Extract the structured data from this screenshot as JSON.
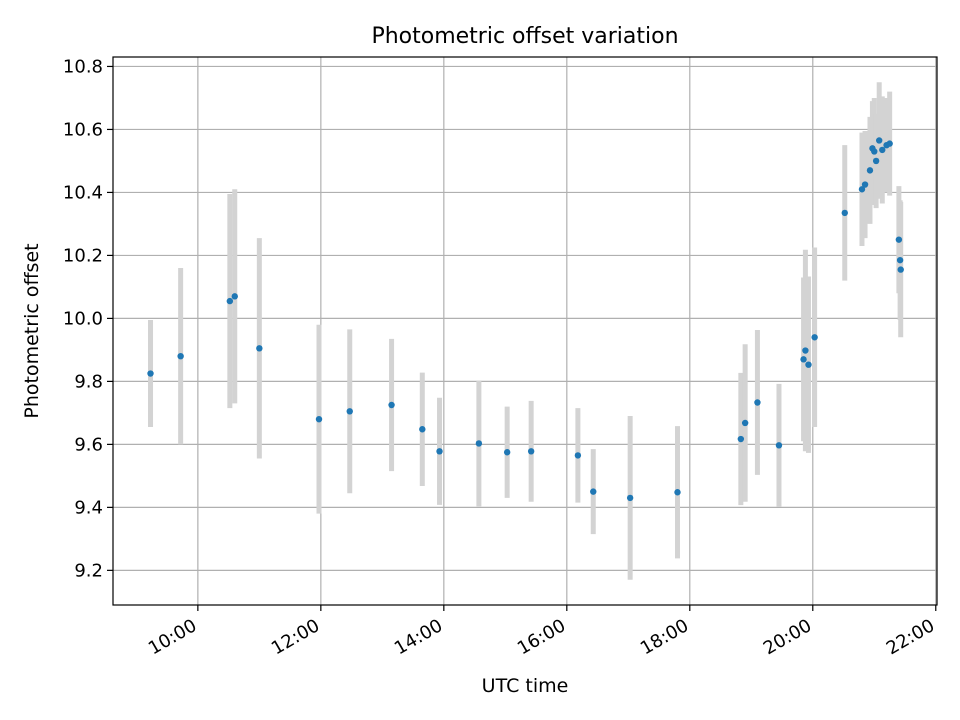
{
  "chart_data": {
    "type": "scatter",
    "title": "Photometric offset variation",
    "xlabel": "UTC time",
    "ylabel": "Photometric offset",
    "x_unit": "hours (UTC)",
    "xlim": [
      8.62,
      22.02
    ],
    "ylim": [
      9.09,
      10.83
    ],
    "grid": true,
    "xticks": [
      {
        "value": 10,
        "label": "10:00"
      },
      {
        "value": 12,
        "label": "12:00"
      },
      {
        "value": 14,
        "label": "14:00"
      },
      {
        "value": 16,
        "label": "16:00"
      },
      {
        "value": 18,
        "label": "18:00"
      },
      {
        "value": 20,
        "label": "20:00"
      },
      {
        "value": 22,
        "label": "22:00"
      }
    ],
    "yticks": [
      {
        "value": 9.2,
        "label": "9.2"
      },
      {
        "value": 9.4,
        "label": "9.4"
      },
      {
        "value": 9.6,
        "label": "9.6"
      },
      {
        "value": 9.8,
        "label": "9.8"
      },
      {
        "value": 10.0,
        "label": "10.0"
      },
      {
        "value": 10.2,
        "label": "10.2"
      },
      {
        "value": 10.4,
        "label": "10.4"
      },
      {
        "value": 10.6,
        "label": "10.6"
      },
      {
        "value": 10.8,
        "label": "10.8"
      }
    ],
    "colors": {
      "point": "#1f77b4",
      "errorbar": "#d3d3d3",
      "grid": "#b0b0b0",
      "axes": "#000000"
    },
    "points": [
      {
        "x": 9.23,
        "y": 9.825,
        "yerr": 0.17
      },
      {
        "x": 9.72,
        "y": 9.88,
        "yerr": 0.28
      },
      {
        "x": 10.52,
        "y": 10.055,
        "yerr": 0.34
      },
      {
        "x": 10.6,
        "y": 10.07,
        "yerr": 0.34
      },
      {
        "x": 11.0,
        "y": 9.905,
        "yerr": 0.35
      },
      {
        "x": 11.97,
        "y": 9.68,
        "yerr": 0.3
      },
      {
        "x": 12.47,
        "y": 9.705,
        "yerr": 0.26
      },
      {
        "x": 13.15,
        "y": 9.725,
        "yerr": 0.21
      },
      {
        "x": 13.65,
        "y": 9.648,
        "yerr": 0.18
      },
      {
        "x": 13.93,
        "y": 9.578,
        "yerr": 0.17
      },
      {
        "x": 14.57,
        "y": 9.603,
        "yerr": 0.2
      },
      {
        "x": 15.03,
        "y": 9.575,
        "yerr": 0.145
      },
      {
        "x": 15.42,
        "y": 9.578,
        "yerr": 0.16
      },
      {
        "x": 16.18,
        "y": 9.565,
        "yerr": 0.15
      },
      {
        "x": 16.43,
        "y": 9.45,
        "yerr": 0.135
      },
      {
        "x": 17.03,
        "y": 9.43,
        "yerr": 0.26
      },
      {
        "x": 17.8,
        "y": 9.448,
        "yerr": 0.21
      },
      {
        "x": 18.83,
        "y": 9.617,
        "yerr": 0.21
      },
      {
        "x": 18.9,
        "y": 9.668,
        "yerr": 0.25
      },
      {
        "x": 19.1,
        "y": 9.733,
        "yerr": 0.23
      },
      {
        "x": 19.45,
        "y": 9.597,
        "yerr": 0.195
      },
      {
        "x": 19.85,
        "y": 9.87,
        "yerr": 0.26
      },
      {
        "x": 19.88,
        "y": 9.898,
        "yerr": 0.32
      },
      {
        "x": 19.93,
        "y": 9.853,
        "yerr": 0.28
      },
      {
        "x": 20.03,
        "y": 9.94,
        "yerr": 0.285
      },
      {
        "x": 20.52,
        "y": 10.335,
        "yerr": 0.215
      },
      {
        "x": 20.8,
        "y": 10.41,
        "yerr": 0.18
      },
      {
        "x": 20.85,
        "y": 10.425,
        "yerr": 0.17
      },
      {
        "x": 20.93,
        "y": 10.47,
        "yerr": 0.17
      },
      {
        "x": 20.97,
        "y": 10.54,
        "yerr": 0.15
      },
      {
        "x": 21.0,
        "y": 10.53,
        "yerr": 0.17
      },
      {
        "x": 21.03,
        "y": 10.5,
        "yerr": 0.15
      },
      {
        "x": 21.08,
        "y": 10.565,
        "yerr": 0.185
      },
      {
        "x": 21.13,
        "y": 10.535,
        "yerr": 0.17
      },
      {
        "x": 21.2,
        "y": 10.55,
        "yerr": 0.15
      },
      {
        "x": 21.25,
        "y": 10.555,
        "yerr": 0.165
      },
      {
        "x": 21.4,
        "y": 10.25,
        "yerr": 0.17
      },
      {
        "x": 21.42,
        "y": 10.185,
        "yerr": 0.19
      },
      {
        "x": 21.43,
        "y": 10.155,
        "yerr": 0.215
      }
    ]
  }
}
